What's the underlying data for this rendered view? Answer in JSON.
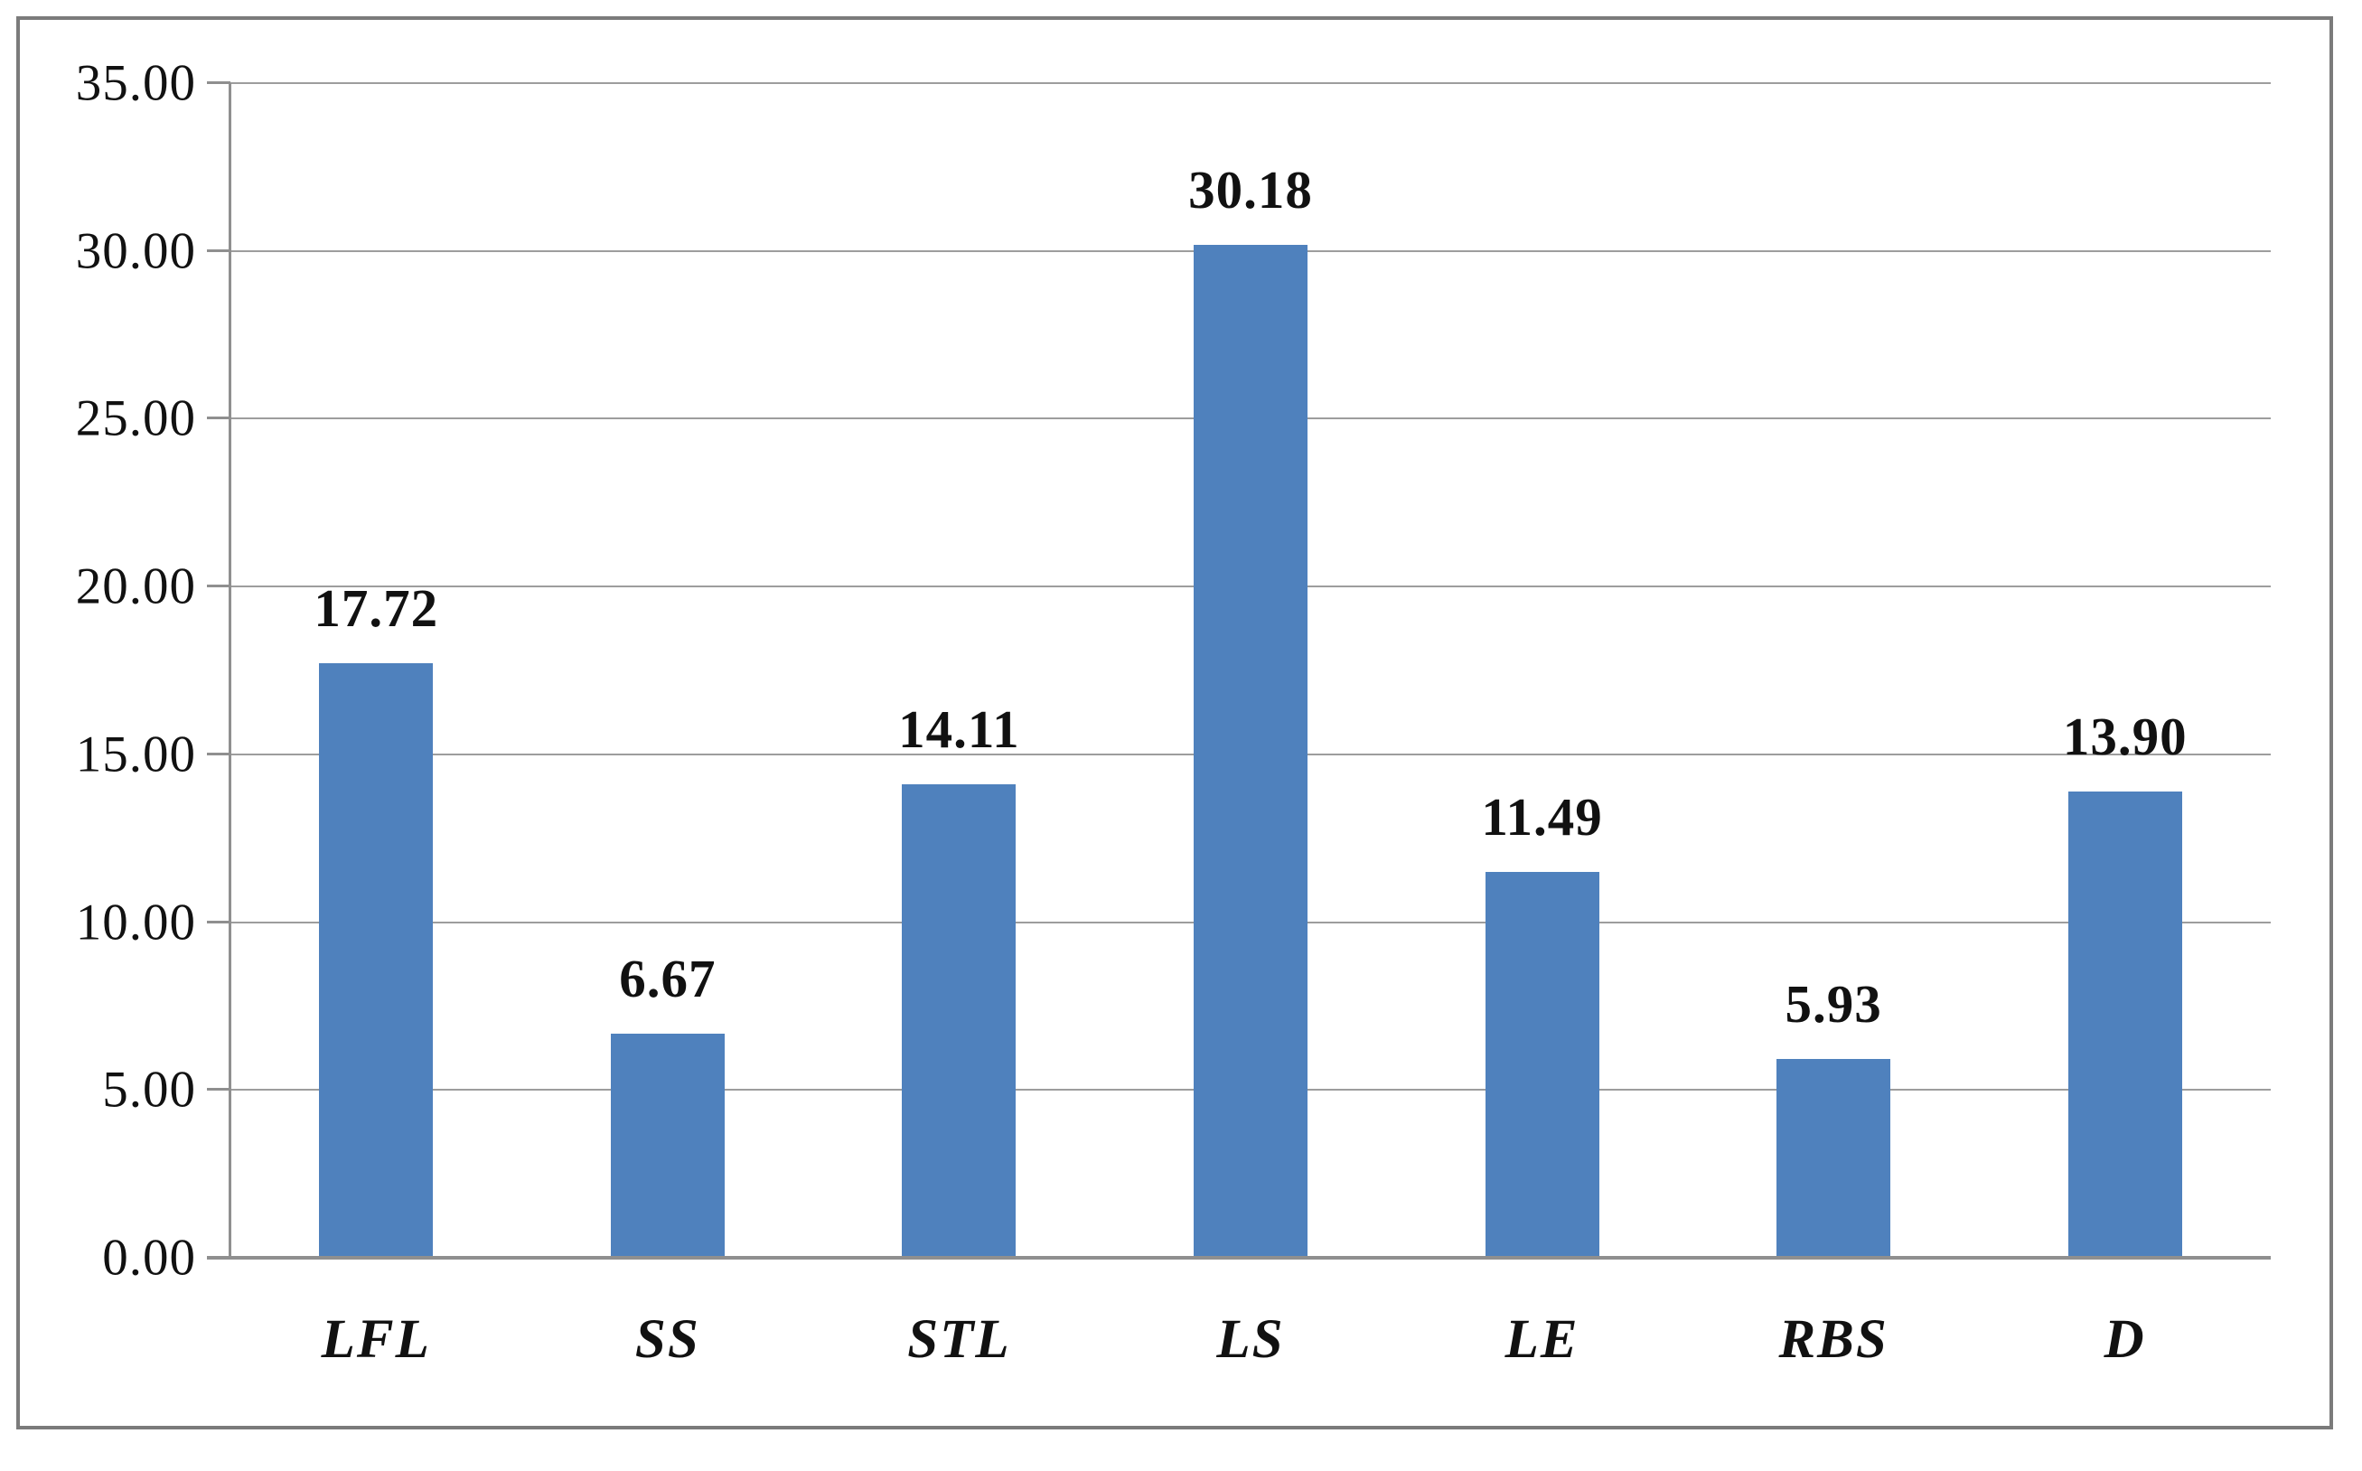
{
  "chart_data": {
    "type": "bar",
    "categories": [
      "LFL",
      "SS",
      "STL",
      "LS",
      "LE",
      "RBS",
      "D"
    ],
    "values": [
      17.72,
      6.67,
      14.11,
      30.18,
      11.49,
      5.93,
      13.9
    ],
    "data_labels": [
      "17.72",
      "6.67",
      "14.11",
      "30.18",
      "11.49",
      "5.93",
      "13.90"
    ],
    "title": "",
    "xlabel": "",
    "ylabel": "",
    "ylim": [
      0,
      35
    ],
    "ytick_step": 5,
    "ytick_labels": [
      "0.00",
      "5.00",
      "10.00",
      "15.00",
      "20.00",
      "25.00",
      "30.00",
      "35.00"
    ],
    "grid": true,
    "legend": false,
    "colors": {
      "bar_fill": "#4F81BD",
      "gridline": "#9d9d9d",
      "axis_line": "#8f8f8f",
      "frame_border": "#7b7b7b",
      "text": "#111111"
    }
  }
}
